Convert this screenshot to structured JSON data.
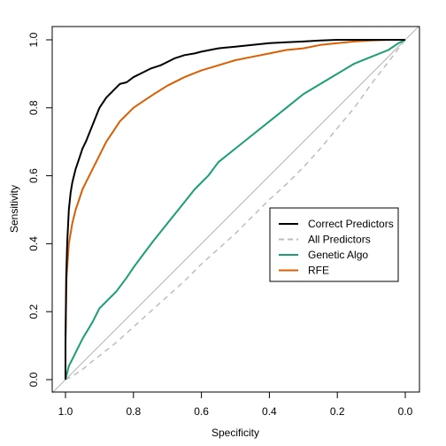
{
  "chart_data": {
    "type": "line",
    "title": "",
    "xlabel": "Specificity",
    "ylabel": "Sensitivity",
    "xlim": [
      1.0,
      0.0
    ],
    "ylim": [
      0.0,
      1.0
    ],
    "x_reversed": true,
    "xticks": [
      "1.0",
      "0.8",
      "0.6",
      "0.4",
      "0.2",
      "0.0"
    ],
    "yticks": [
      "0.0",
      "0.2",
      "0.4",
      "0.6",
      "0.8",
      "1.0"
    ],
    "grid": false,
    "legend_position": "center-right",
    "reference_line": {
      "x": [
        1.0,
        0.0
      ],
      "y": [
        0.0,
        1.0
      ],
      "color": "#b3b3b3"
    },
    "series": [
      {
        "name": "Correct Predictors",
        "color": "#000000",
        "dash": "solid",
        "specificity": [
          1.0,
          1.0,
          0.998,
          0.995,
          0.99,
          0.985,
          0.98,
          0.97,
          0.96,
          0.95,
          0.94,
          0.92,
          0.9,
          0.88,
          0.86,
          0.84,
          0.82,
          0.8,
          0.78,
          0.75,
          0.72,
          0.7,
          0.68,
          0.65,
          0.62,
          0.6,
          0.55,
          0.5,
          0.45,
          0.4,
          0.35,
          0.3,
          0.25,
          0.2,
          0.15,
          0.1,
          0.05,
          0.0
        ],
        "sensitivity": [
          0.0,
          0.1,
          0.3,
          0.4,
          0.5,
          0.55,
          0.58,
          0.62,
          0.65,
          0.68,
          0.7,
          0.75,
          0.8,
          0.83,
          0.85,
          0.87,
          0.875,
          0.89,
          0.9,
          0.915,
          0.925,
          0.935,
          0.945,
          0.955,
          0.96,
          0.965,
          0.975,
          0.98,
          0.985,
          0.99,
          0.993,
          0.995,
          0.998,
          1.0,
          1.0,
          1.0,
          1.0,
          1.0
        ]
      },
      {
        "name": "All Predictors",
        "color": "#bdbdbd",
        "dash": "dashed",
        "specificity": [
          1.0,
          0.98,
          0.95,
          0.92,
          0.9,
          0.85,
          0.8,
          0.75,
          0.7,
          0.65,
          0.6,
          0.55,
          0.5,
          0.45,
          0.4,
          0.35,
          0.3,
          0.25,
          0.2,
          0.15,
          0.1,
          0.05,
          0.0
        ],
        "sensitivity": [
          0.0,
          0.01,
          0.03,
          0.055,
          0.07,
          0.11,
          0.155,
          0.2,
          0.245,
          0.29,
          0.34,
          0.385,
          0.43,
          0.48,
          0.53,
          0.575,
          0.625,
          0.68,
          0.74,
          0.8,
          0.87,
          0.935,
          1.0
        ]
      },
      {
        "name": "Genetic Algo",
        "color": "#1b9e77",
        "dash": "solid",
        "specificity": [
          1.0,
          0.995,
          0.99,
          0.98,
          0.97,
          0.95,
          0.92,
          0.9,
          0.88,
          0.85,
          0.82,
          0.8,
          0.77,
          0.74,
          0.7,
          0.66,
          0.62,
          0.58,
          0.55,
          0.5,
          0.45,
          0.4,
          0.35,
          0.3,
          0.25,
          0.2,
          0.15,
          0.1,
          0.05,
          0.02,
          0.0
        ],
        "sensitivity": [
          0.0,
          0.02,
          0.04,
          0.06,
          0.08,
          0.12,
          0.17,
          0.21,
          0.23,
          0.26,
          0.3,
          0.33,
          0.37,
          0.41,
          0.46,
          0.51,
          0.56,
          0.6,
          0.64,
          0.68,
          0.72,
          0.76,
          0.8,
          0.84,
          0.87,
          0.9,
          0.93,
          0.95,
          0.97,
          0.99,
          1.0
        ]
      },
      {
        "name": "RFE",
        "color": "#d95f02",
        "dash": "solid",
        "specificity": [
          1.0,
          1.0,
          0.997,
          0.99,
          0.98,
          0.97,
          0.96,
          0.95,
          0.94,
          0.92,
          0.9,
          0.88,
          0.86,
          0.84,
          0.82,
          0.8,
          0.77,
          0.74,
          0.7,
          0.65,
          0.6,
          0.55,
          0.5,
          0.45,
          0.4,
          0.35,
          0.3,
          0.25,
          0.2,
          0.15,
          0.1,
          0.05,
          0.0
        ],
        "sensitivity": [
          0.0,
          0.12,
          0.3,
          0.4,
          0.46,
          0.5,
          0.53,
          0.56,
          0.58,
          0.62,
          0.66,
          0.7,
          0.73,
          0.76,
          0.78,
          0.8,
          0.82,
          0.84,
          0.865,
          0.89,
          0.91,
          0.925,
          0.94,
          0.95,
          0.96,
          0.97,
          0.975,
          0.985,
          0.99,
          0.995,
          0.998,
          1.0,
          1.0
        ]
      }
    ]
  }
}
